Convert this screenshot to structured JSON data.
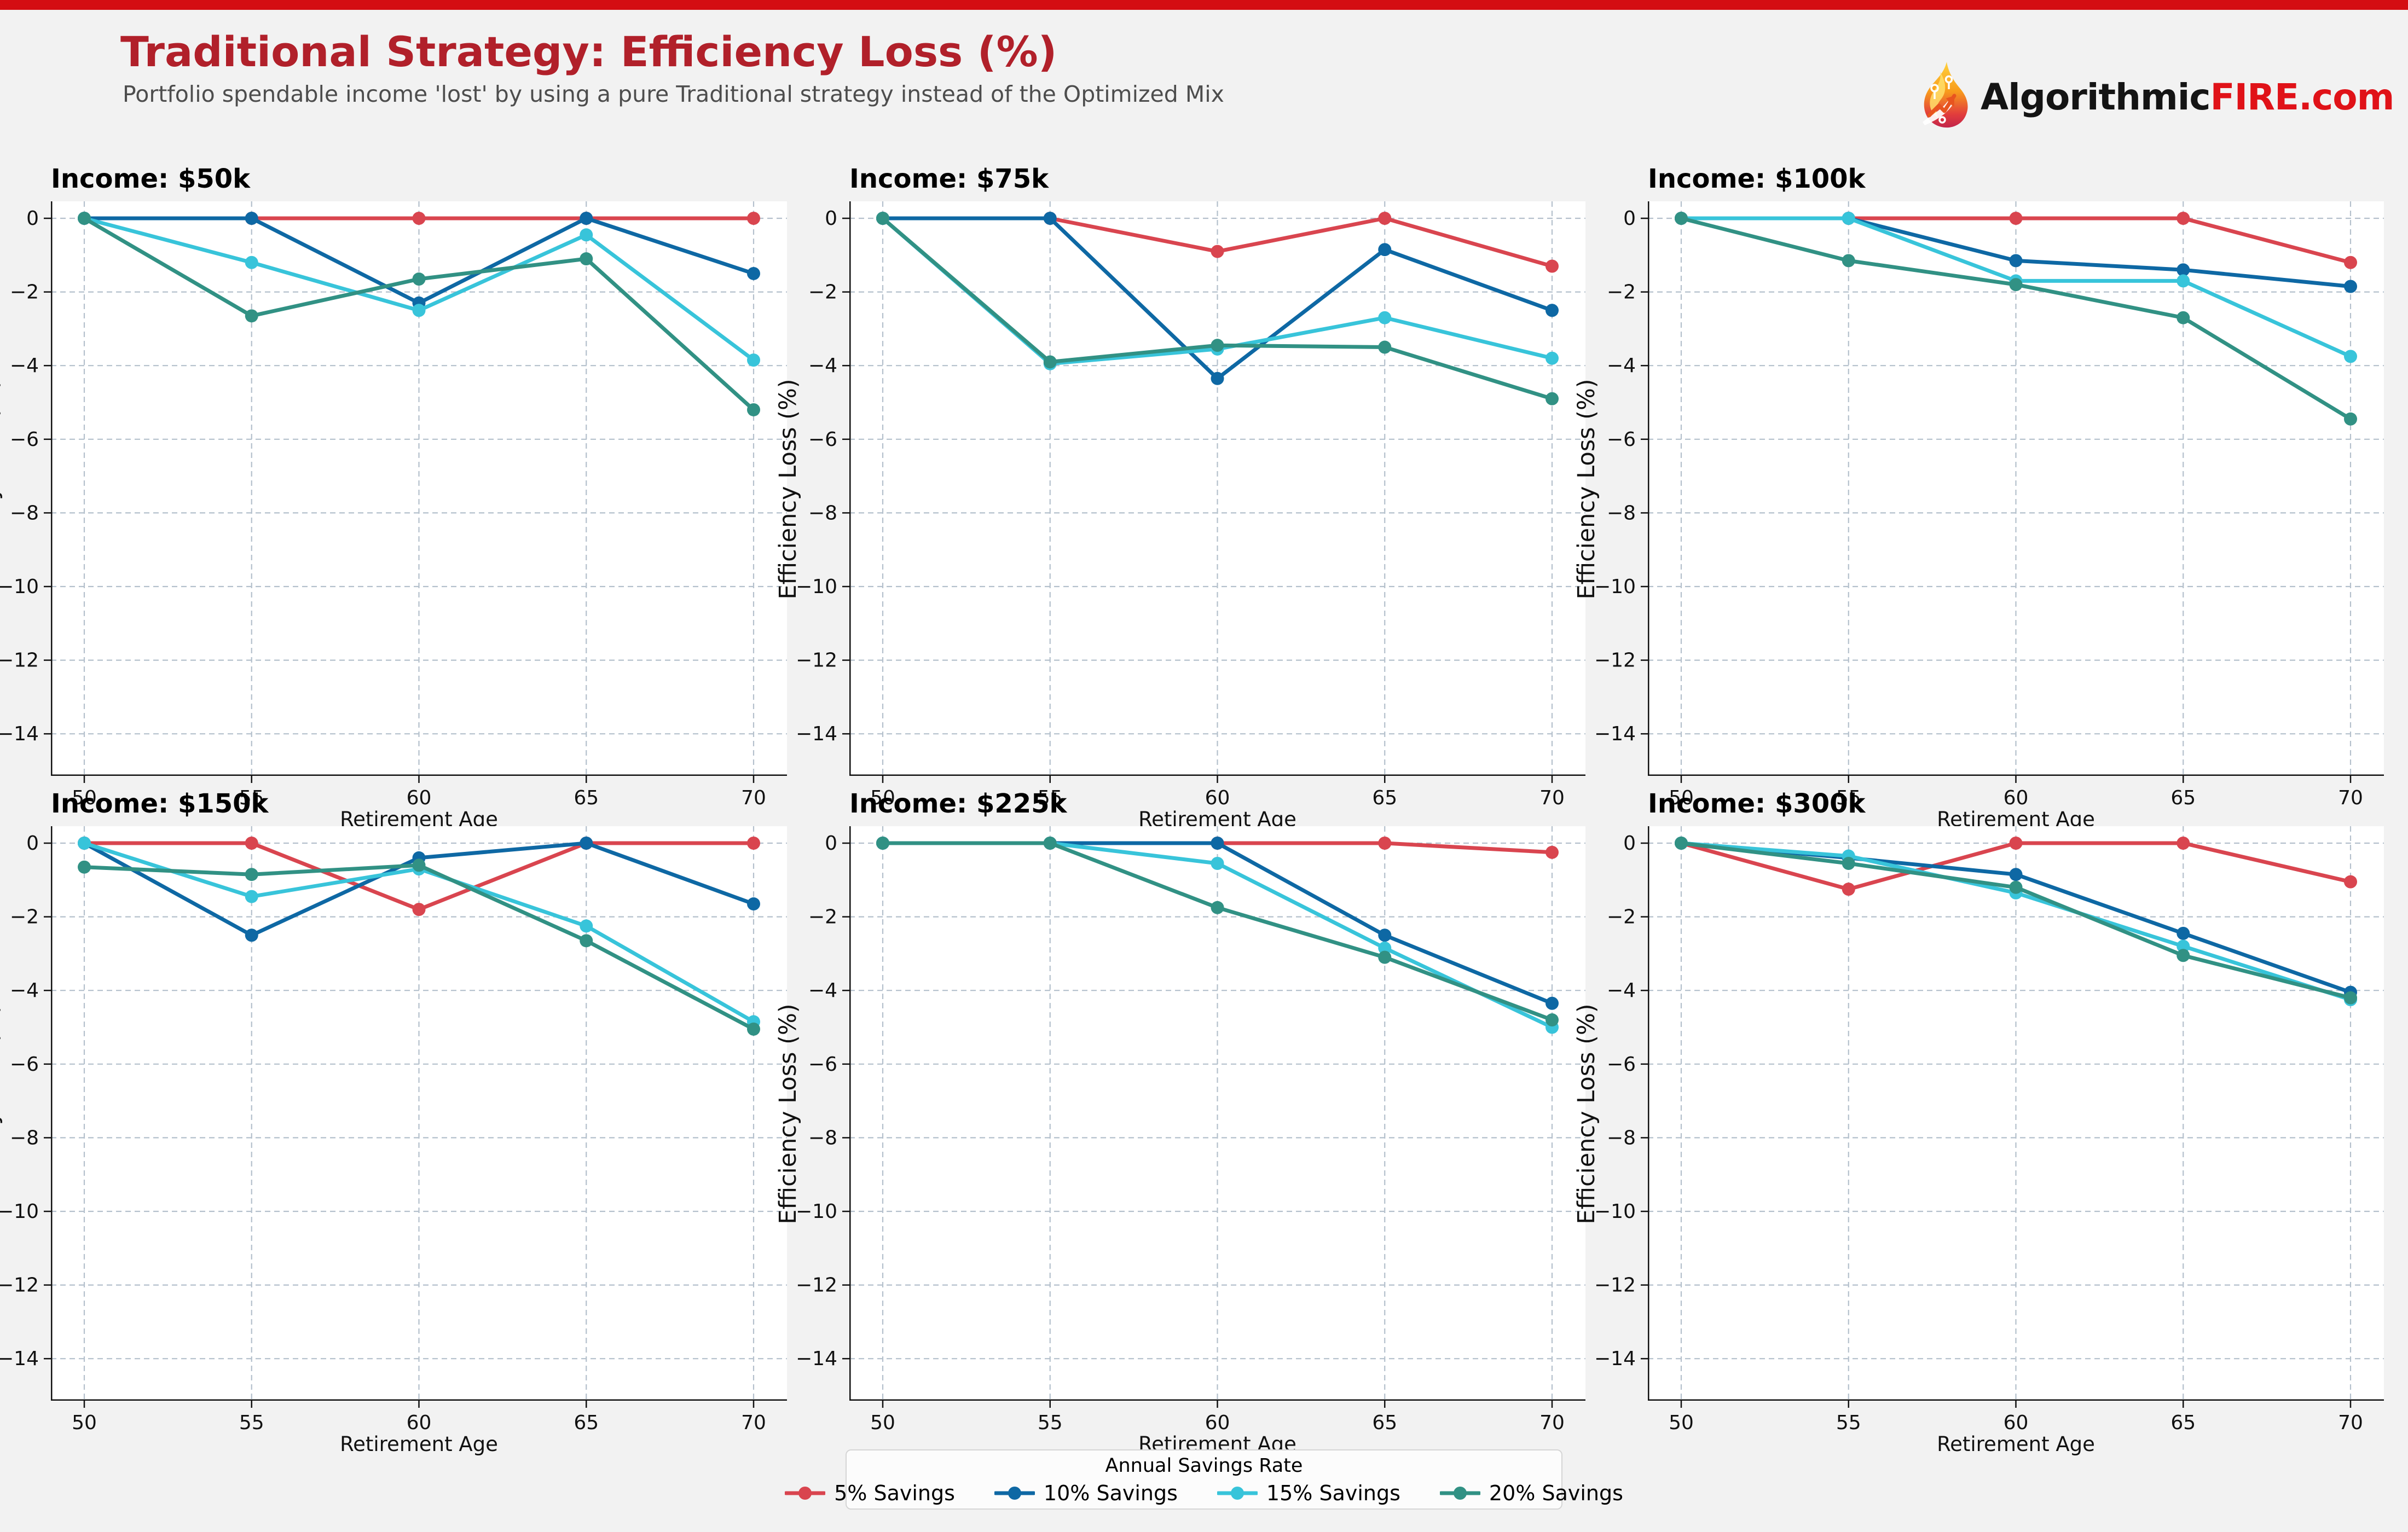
{
  "page": {
    "background": "#f2f2f2",
    "topbar_color": "#d40d12"
  },
  "header": {
    "title": "Traditional Strategy: Efficiency Loss (%)",
    "title_color": "#b1202a",
    "subtitle": "Portfolio spendable income 'lost' by using a pure Traditional strategy instead of the Optimized Mix"
  },
  "logo": {
    "text_black": "Algorithmic",
    "text_red": "FIRE.com",
    "red_color": "#e01218",
    "icon": "flame-circuit-arrow-icon"
  },
  "axes": {
    "xlabel": "Retirement Age",
    "ylabel": "Efficiency Loss (%)",
    "x_ticks": [
      50,
      55,
      60,
      65,
      70
    ],
    "y_ticks": [
      0,
      -2,
      -4,
      -6,
      -8,
      -10,
      -12,
      -14
    ],
    "ylim": [
      -15.1,
      0.46
    ],
    "grid": true,
    "grid_color": "#b4c0cc",
    "plot_background": "#ffffff"
  },
  "legend": {
    "title": "Annual Savings Rate",
    "entries": [
      {
        "label": "5% Savings",
        "color": "#d9454f"
      },
      {
        "label": "10% Savings",
        "color": "#0e68a4"
      },
      {
        "label": "15% Savings",
        "color": "#38c4da"
      },
      {
        "label": "20% Savings",
        "color": "#319184"
      }
    ]
  },
  "chart_data": [
    {
      "type": "line",
      "title": "Income: $50k",
      "x": [
        50,
        55,
        60,
        65,
        70
      ],
      "series": [
        {
          "name": "5% Savings",
          "values": [
            0,
            0,
            0,
            0,
            0
          ]
        },
        {
          "name": "10% Savings",
          "values": [
            0,
            0,
            -2.3,
            0,
            -1.5
          ]
        },
        {
          "name": "15% Savings",
          "values": [
            0,
            -1.2,
            -2.5,
            -0.45,
            -3.85
          ]
        },
        {
          "name": "20% Savings",
          "values": [
            0,
            -2.65,
            -1.65,
            -1.1,
            -5.2
          ]
        }
      ]
    },
    {
      "type": "line",
      "title": "Income: $75k",
      "x": [
        50,
        55,
        60,
        65,
        70
      ],
      "series": [
        {
          "name": "5% Savings",
          "values": [
            0,
            0,
            -0.9,
            0,
            -1.3
          ]
        },
        {
          "name": "10% Savings",
          "values": [
            0,
            0,
            -4.35,
            -0.85,
            -2.5
          ]
        },
        {
          "name": "15% Savings",
          "values": [
            0,
            -3.95,
            -3.55,
            -2.7,
            -3.8
          ]
        },
        {
          "name": "20% Savings",
          "values": [
            0,
            -3.9,
            -3.45,
            -3.5,
            -4.9
          ]
        }
      ]
    },
    {
      "type": "line",
      "title": "Income: $100k",
      "x": [
        50,
        55,
        60,
        65,
        70
      ],
      "series": [
        {
          "name": "5% Savings",
          "values": [
            0,
            0,
            0,
            0,
            -1.2
          ]
        },
        {
          "name": "10% Savings",
          "values": [
            0,
            0,
            -1.15,
            -1.4,
            -1.85
          ]
        },
        {
          "name": "15% Savings",
          "values": [
            0,
            0,
            -1.7,
            -1.7,
            -3.75
          ]
        },
        {
          "name": "20% Savings",
          "values": [
            0,
            -1.15,
            -1.8,
            -2.7,
            -5.45
          ]
        }
      ]
    },
    {
      "type": "line",
      "title": "Income: $150k",
      "x": [
        50,
        55,
        60,
        65,
        70
      ],
      "series": [
        {
          "name": "5% Savings",
          "values": [
            0,
            0,
            -1.8,
            0,
            0
          ]
        },
        {
          "name": "10% Savings",
          "values": [
            0,
            -2.5,
            -0.4,
            0,
            -1.65
          ]
        },
        {
          "name": "15% Savings",
          "values": [
            0,
            -1.45,
            -0.7,
            -2.25,
            -4.85
          ]
        },
        {
          "name": "20% Savings",
          "values": [
            -0.65,
            -0.85,
            -0.6,
            -2.65,
            -5.05
          ]
        }
      ]
    },
    {
      "type": "line",
      "title": "Income: $225k",
      "x": [
        50,
        55,
        60,
        65,
        70
      ],
      "series": [
        {
          "name": "5% Savings",
          "values": [
            0,
            0,
            0,
            0,
            -0.25
          ]
        },
        {
          "name": "10% Savings",
          "values": [
            0,
            0,
            0,
            -2.5,
            -4.35
          ]
        },
        {
          "name": "15% Savings",
          "values": [
            0,
            0,
            -0.55,
            -2.85,
            -5.0
          ]
        },
        {
          "name": "20% Savings",
          "values": [
            0,
            0,
            -1.75,
            -3.1,
            -4.8
          ]
        }
      ]
    },
    {
      "type": "line",
      "title": "Income: $300k",
      "x": [
        50,
        55,
        60,
        65,
        70
      ],
      "series": [
        {
          "name": "5% Savings",
          "values": [
            0,
            -1.25,
            0,
            0,
            -1.05
          ]
        },
        {
          "name": "10% Savings",
          "values": [
            0,
            -0.4,
            -0.85,
            -2.45,
            -4.05
          ]
        },
        {
          "name": "15% Savings",
          "values": [
            0,
            -0.35,
            -1.35,
            -2.8,
            -4.25
          ]
        },
        {
          "name": "20% Savings",
          "values": [
            0,
            -0.55,
            -1.2,
            -3.05,
            -4.2
          ]
        }
      ]
    }
  ]
}
